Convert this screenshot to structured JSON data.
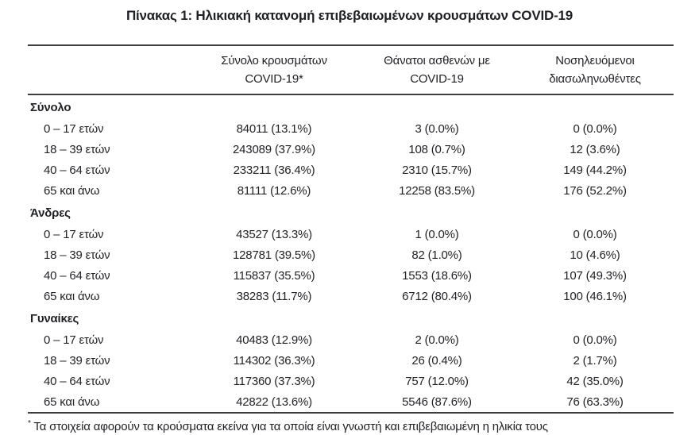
{
  "title": "Πίνακας 1: Ηλικιακή κατανομή επιβεβαιωμένων κρουσμάτων COVID-19",
  "table": {
    "columns": [
      {
        "line1": "Σύνολο κρουσμάτων",
        "line2": "COVID-19*"
      },
      {
        "line1": "Θάνατοι ασθενών με",
        "line2": "COVID-19"
      },
      {
        "line1": "Νοσηλευόμενοι",
        "line2": "διασωληνωθέντες"
      }
    ],
    "sections": [
      {
        "label": "Σύνολο",
        "rows": [
          {
            "age": "0 – 17 ετών",
            "cases": "84011 (13.1%)",
            "deaths": "3 (0.0%)",
            "intubated": "0 (0.0%)"
          },
          {
            "age": "18 – 39 ετών",
            "cases": "243089 (37.9%)",
            "deaths": "108 (0.7%)",
            "intubated": "12 (3.6%)"
          },
          {
            "age": "40 – 64 ετών",
            "cases": "233211 (36.4%)",
            "deaths": "2310 (15.7%)",
            "intubated": "149 (44.2%)"
          },
          {
            "age": "65 και άνω",
            "cases": "81111 (12.6%)",
            "deaths": "12258 (83.5%)",
            "intubated": "176 (52.2%)"
          }
        ]
      },
      {
        "label": "Άνδρες",
        "rows": [
          {
            "age": "0 – 17 ετών",
            "cases": "43527 (13.3%)",
            "deaths": "1 (0.0%)",
            "intubated": "0 (0.0%)"
          },
          {
            "age": "18 – 39 ετών",
            "cases": "128781 (39.5%)",
            "deaths": "82 (1.0%)",
            "intubated": "10 (4.6%)"
          },
          {
            "age": "40 – 64 ετών",
            "cases": "115837 (35.5%)",
            "deaths": "1553 (18.6%)",
            "intubated": "107 (49.3%)"
          },
          {
            "age": "65 και άνω",
            "cases": "38283 (11.7%)",
            "deaths": "6712 (80.4%)",
            "intubated": "100 (46.1%)"
          }
        ]
      },
      {
        "label": "Γυναίκες",
        "rows": [
          {
            "age": "0 – 17 ετών",
            "cases": "40483 (12.9%)",
            "deaths": "2 (0.0%)",
            "intubated": "0 (0.0%)"
          },
          {
            "age": "18 – 39 ετών",
            "cases": "114302 (36.3%)",
            "deaths": "26 (0.4%)",
            "intubated": "2 (1.7%)"
          },
          {
            "age": "40 – 64 ετών",
            "cases": "117360 (37.3%)",
            "deaths": "757 (12.0%)",
            "intubated": "42 (35.0%)"
          },
          {
            "age": "65 και άνω",
            "cases": "42822 (13.6%)",
            "deaths": "5546 (87.6%)",
            "intubated": "76 (63.3%)"
          }
        ]
      }
    ]
  },
  "footnote": {
    "marker": "*",
    "text": "Τα στοιχεία αφορούν τα κρούσματα εκείνα για τα οποία είναι γνωστή και επιβεβαιωμένη η ηλικία τους"
  },
  "colors": {
    "text": "#222326",
    "rule": "#3e3e40",
    "background": "#ffffff"
  }
}
